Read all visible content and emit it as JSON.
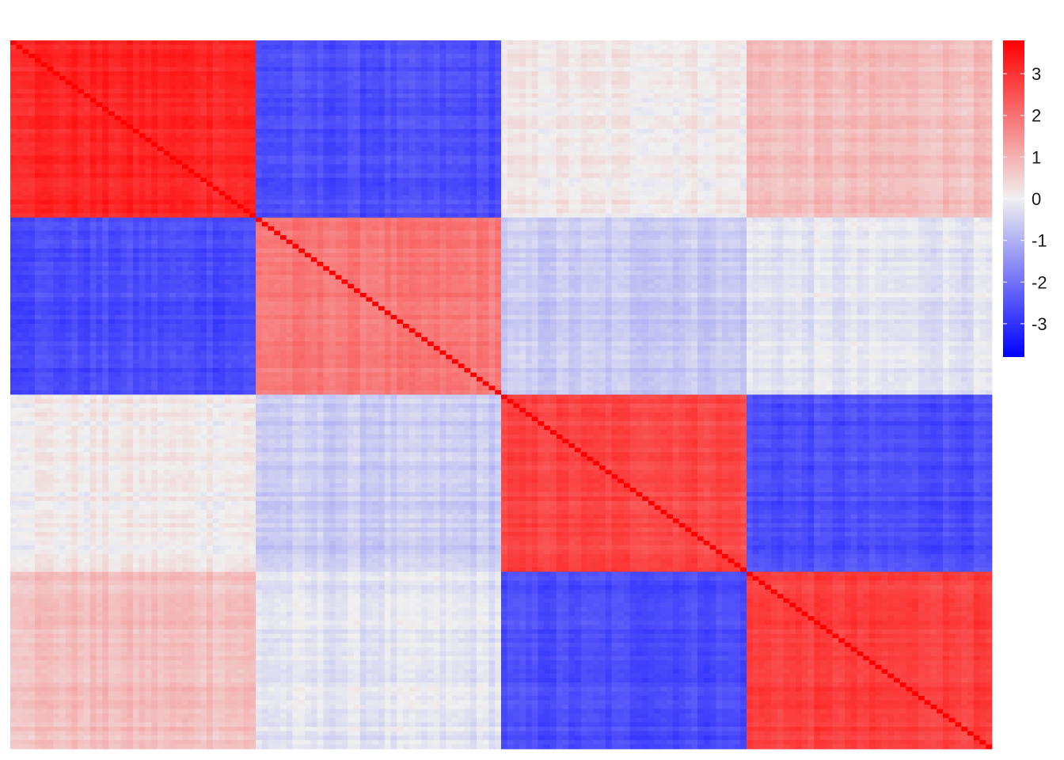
{
  "chart_data": {
    "type": "heatmap",
    "title": "",
    "xlabel": "",
    "ylabel": "",
    "n": 160,
    "blocks": 4,
    "block_means": [
      [
        3.2,
        -2.6,
        0.1,
        0.8
      ],
      [
        -2.6,
        1.9,
        -0.6,
        -0.2
      ],
      [
        0.1,
        -0.6,
        2.7,
        -2.6
      ],
      [
        0.8,
        -0.2,
        -2.6,
        2.8
      ]
    ],
    "diagonal_value": 3.8,
    "colorbar": {
      "min": -3.8,
      "max": 3.8,
      "colors": {
        "low": "#0000FF",
        "mid": "#F0F0F0",
        "high": "#FF0000"
      },
      "ticks": [
        3,
        2,
        1,
        0,
        -1,
        -2,
        -3
      ],
      "tick_labels": [
        "3",
        "2",
        "1",
        "0",
        "-1",
        "-2",
        "-3"
      ]
    },
    "grid": false,
    "legend": "right"
  }
}
